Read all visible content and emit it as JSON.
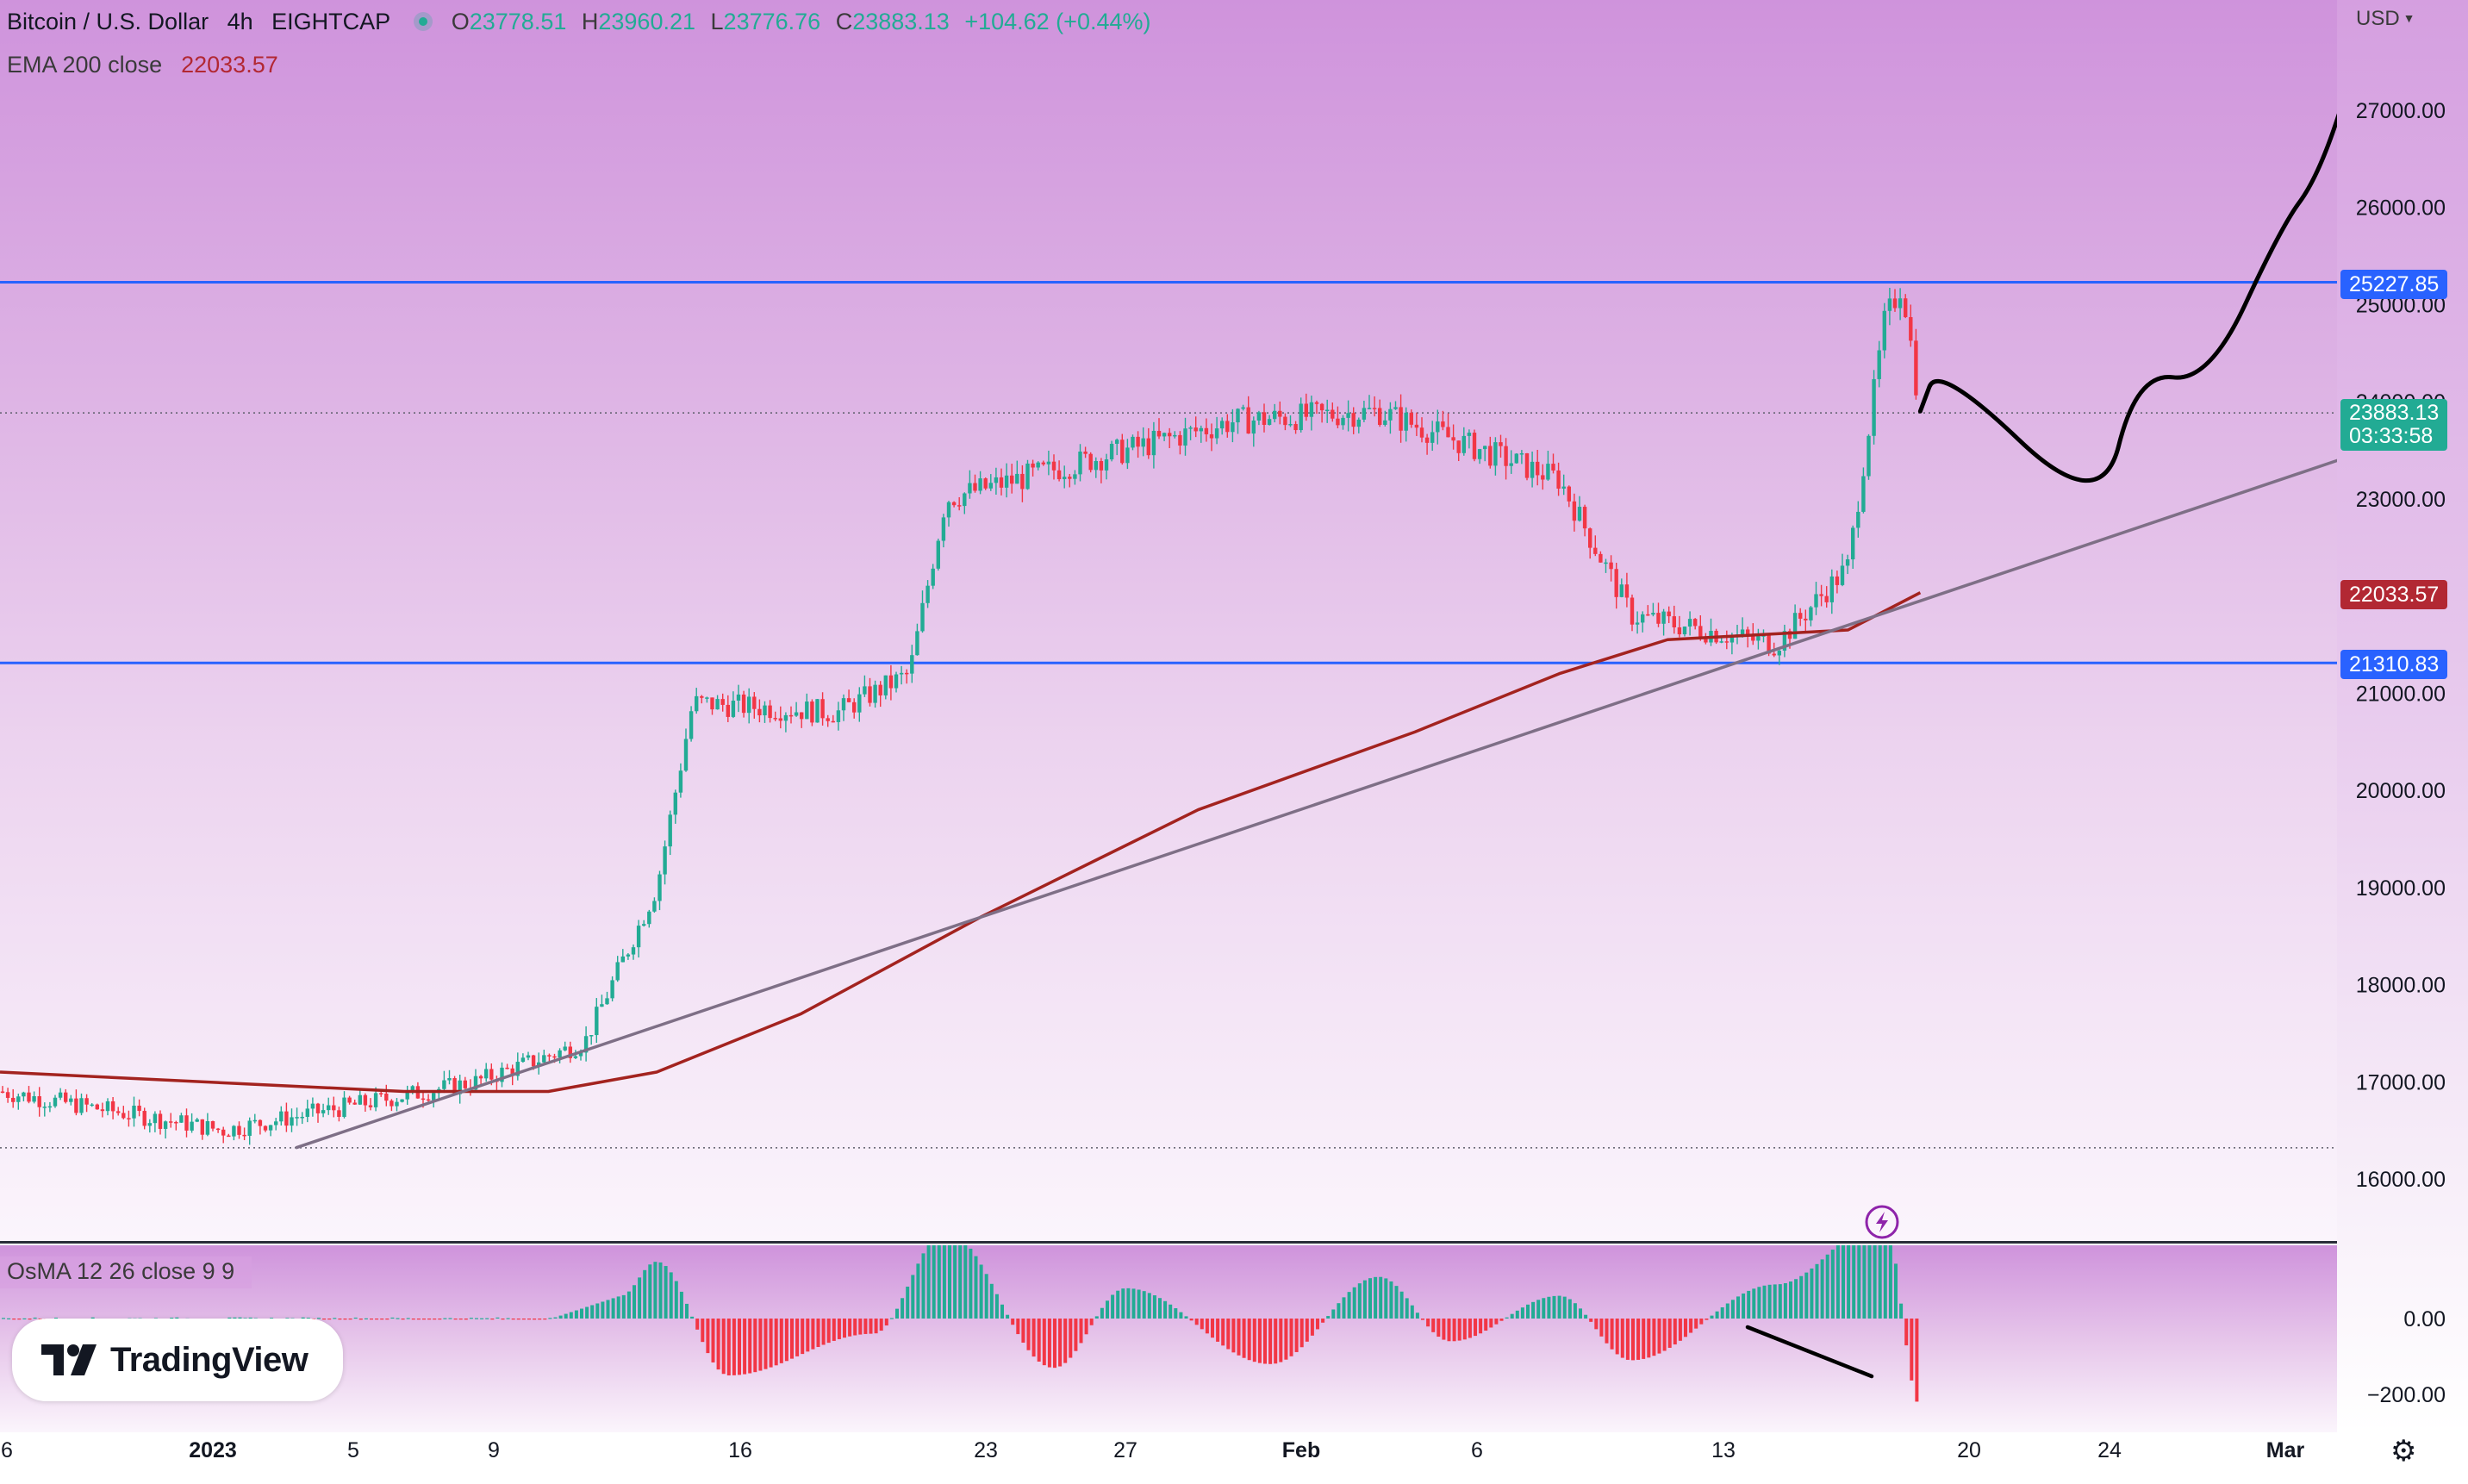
{
  "header": {
    "symbol": "Bitcoin / U.S. Dollar",
    "interval": "4h",
    "exchange": "EIGHTCAP",
    "ohlc": {
      "o_label": "O",
      "o": "23778.51",
      "h_label": "H",
      "h": "23960.21",
      "l_label": "L",
      "l": "23776.76",
      "c_label": "C",
      "c": "23883.13",
      "change": "+104.62 (+0.44%)"
    },
    "ema_label": "EMA 200 close",
    "ema_value": "22033.57",
    "currency": "USD"
  },
  "price_axis": {
    "ticks": [
      "27000.00",
      "26000.00",
      "25000.00",
      "24000.00",
      "23000.00",
      "21000.00",
      "20000.00",
      "19000.00",
      "18000.00",
      "17000.00",
      "16000.00"
    ],
    "current_price": "23883.13",
    "countdown": "03:33:58",
    "ema_badge": "22033.57",
    "resistance_badge": "25227.85",
    "support_badge": "21310.83"
  },
  "osc": {
    "label": "OsMA 12 26 close 9 9",
    "ticks": [
      "0.00",
      "−200.00"
    ]
  },
  "time_axis": {
    "labels": [
      "6",
      "2023",
      "5",
      "9",
      "16",
      "23",
      "27",
      "Feb",
      "6",
      "13",
      "20",
      "24",
      "Mar"
    ]
  },
  "branding": {
    "logo_text": "TradingView"
  },
  "colors": {
    "up": "#22ab94",
    "down": "#f23645",
    "ema": "#a3231f",
    "level_line": "#2962ff",
    "trendline": "#7e6f86",
    "forecast": "#000000"
  },
  "chart_data": {
    "type": "candlestick",
    "title": "Bitcoin / U.S. Dollar, 4h, EIGHTCAP",
    "ylabel": "USD",
    "ylim": [
      15300,
      28500
    ],
    "x_range": [
      "2022-12-26",
      "2023-03-02"
    ],
    "levels": [
      {
        "name": "resistance",
        "value": 25227.85
      },
      {
        "name": "support",
        "value": 21310.83
      },
      {
        "name": "current",
        "value": 23883.13
      },
      {
        "name": "low_marker",
        "value": 16320
      }
    ],
    "key_prices": [
      {
        "date": "2023-01-01",
        "price": 16500
      },
      {
        "date": "2023-01-08",
        "price": 17000
      },
      {
        "date": "2023-01-11",
        "price": 17400
      },
      {
        "date": "2023-01-13",
        "price": 19000
      },
      {
        "date": "2023-01-14",
        "price": 20900
      },
      {
        "date": "2023-01-18",
        "price": 20800
      },
      {
        "date": "2023-01-20",
        "price": 21200
      },
      {
        "date": "2023-01-21",
        "price": 23000
      },
      {
        "date": "2023-01-29",
        "price": 23800
      },
      {
        "date": "2023-02-02",
        "price": 23900
      },
      {
        "date": "2023-02-07",
        "price": 23200
      },
      {
        "date": "2023-02-09",
        "price": 21800
      },
      {
        "date": "2023-02-13",
        "price": 21500
      },
      {
        "date": "2023-02-15",
        "price": 22300
      },
      {
        "date": "2023-02-16",
        "price": 24800
      },
      {
        "date": "2023-02-16T12:00",
        "price": 25227.85
      },
      {
        "date": "2023-02-17",
        "price": 23883.13
      }
    ],
    "ema200": [
      {
        "date": "2022-12-26",
        "value": 17100
      },
      {
        "date": "2023-01-06",
        "value": 16900
      },
      {
        "date": "2023-01-10",
        "value": 16900
      },
      {
        "date": "2023-01-13",
        "value": 17100
      },
      {
        "date": "2023-01-17",
        "value": 17700
      },
      {
        "date": "2023-01-22",
        "value": 18700
      },
      {
        "date": "2023-01-28",
        "value": 19800
      },
      {
        "date": "2023-02-03",
        "value": 20600
      },
      {
        "date": "2023-02-07",
        "value": 21200
      },
      {
        "date": "2023-02-10",
        "value": 21550
      },
      {
        "date": "2023-02-15",
        "value": 21650
      },
      {
        "date": "2023-02-17",
        "value": 22033.57
      }
    ],
    "trendline": [
      {
        "date": "2023-01-03",
        "value": 16320
      },
      {
        "date": "2023-03-01",
        "value": 23450
      }
    ],
    "forecast_path": [
      {
        "date": "2023-02-17",
        "price": 23900
      },
      {
        "date": "2023-02-17T12:00",
        "price": 24400
      },
      {
        "date": "2023-02-22",
        "price": 22800
      },
      {
        "date": "2023-02-23",
        "price": 24300
      },
      {
        "date": "2023-02-25",
        "price": 24200
      },
      {
        "date": "2023-02-27",
        "price": 25800
      },
      {
        "date": "2023-02-28",
        "price": 26300
      },
      {
        "date": "2023-03-01",
        "price": 27400
      }
    ],
    "osma": {
      "ylim": [
        -280,
        300
      ],
      "values": [
        {
          "date": "2023-01-12",
          "value": 60
        },
        {
          "date": "2023-01-13",
          "value": 150
        },
        {
          "date": "2023-01-15",
          "value": -150
        },
        {
          "date": "2023-01-19",
          "value": -40
        },
        {
          "date": "2023-01-21",
          "value": 230
        },
        {
          "date": "2023-01-24",
          "value": -130
        },
        {
          "date": "2023-01-26",
          "value": 80
        },
        {
          "date": "2023-01-30",
          "value": -120
        },
        {
          "date": "2023-02-02",
          "value": 110
        },
        {
          "date": "2023-02-04",
          "value": -60
        },
        {
          "date": "2023-02-07",
          "value": 60
        },
        {
          "date": "2023-02-09",
          "value": -110
        },
        {
          "date": "2023-02-13",
          "value": 90
        },
        {
          "date": "2023-02-16",
          "value": 260
        },
        {
          "date": "2023-02-17",
          "value": -230
        }
      ]
    }
  }
}
